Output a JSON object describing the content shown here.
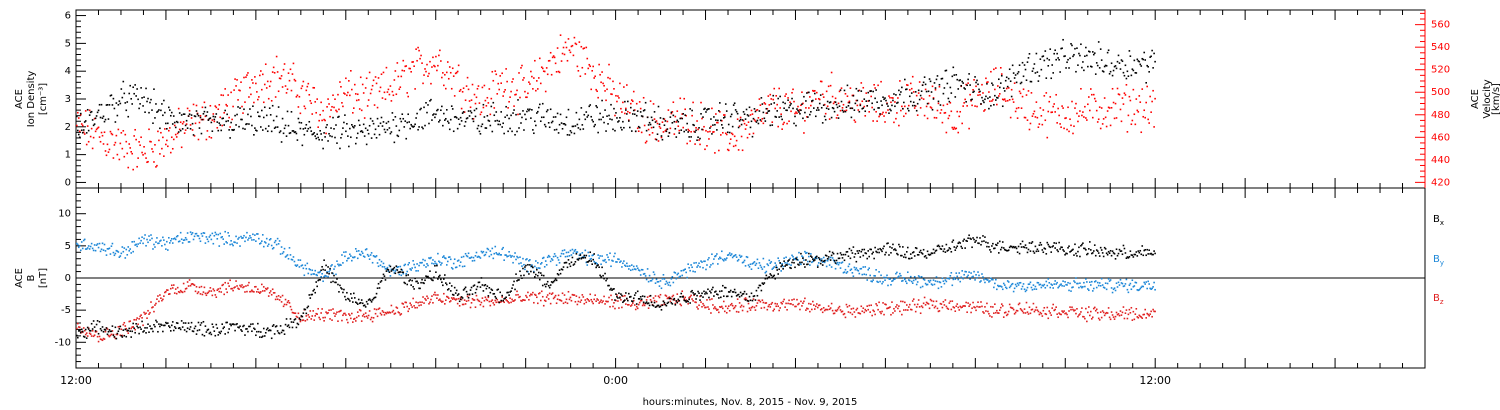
{
  "chart_data": [
    {
      "type": "scatter",
      "panel": "top",
      "ylabel": "ACE\nIon Density\n[cm⁻³]",
      "y2label": "ACE\nVelocity\n[km/s]",
      "ylim": [
        -0.2,
        6.2
      ],
      "y_ticks": [
        "0",
        "1",
        "2",
        "3",
        "4",
        "5",
        "6"
      ],
      "y2lim": [
        415,
        573
      ],
      "y2_ticks": [
        "420",
        "440",
        "460",
        "480",
        "500",
        "520",
        "540",
        "560"
      ],
      "series": [
        {
          "axis": "left",
          "color": "#000000",
          "x": [
            0,
            0.5,
            1,
            1.5,
            2,
            2.5,
            3,
            3.5,
            4,
            4.5,
            5,
            5.5,
            6,
            6.5,
            7,
            7.5,
            8,
            8.5,
            9,
            9.5,
            10,
            10.5,
            11,
            11.5,
            12,
            12.5,
            13,
            13.5,
            14,
            14.5,
            15,
            15.5,
            16,
            16.5,
            17,
            17.5,
            18,
            18.5,
            19,
            19.5,
            20,
            20.5,
            21,
            21.5,
            22,
            22.5,
            23,
            23.5
          ],
          "values": [
            1.8,
            2.5,
            3.0,
            3.0,
            2.3,
            2.2,
            2.1,
            2.2,
            2.2,
            2.1,
            1.8,
            1.8,
            1.8,
            1.8,
            2.1,
            2.3,
            2.5,
            2.3,
            2.2,
            2.4,
            2.4,
            2.3,
            2.2,
            2.4,
            2.3,
            2.4,
            2.1,
            2.0,
            2.2,
            2.4,
            2.3,
            2.6,
            2.6,
            2.8,
            2.8,
            3.0,
            3.0,
            3.2,
            3.3,
            3.6,
            3.3,
            3.2,
            4.1,
            4.3,
            4.5,
            4.5,
            4.3,
            4.3
          ]
        },
        {
          "axis": "right",
          "color": "#ff0000",
          "x": [
            0,
            0.5,
            1,
            1.5,
            2,
            2.5,
            3,
            3.5,
            4,
            4.5,
            5,
            5.5,
            6,
            6.5,
            7,
            7.5,
            8,
            8.5,
            9,
            9.5,
            10,
            10.5,
            11,
            11.5,
            12,
            12.5,
            13,
            13.5,
            14,
            14.5,
            15,
            15.5,
            16,
            16.5,
            17,
            17.5,
            18,
            18.5,
            19,
            19.5,
            20,
            20.5,
            21,
            21.5,
            22,
            22.5,
            23,
            23.5
          ],
          "values": [
            470,
            462,
            452,
            448,
            458,
            472,
            478,
            492,
            512,
            515,
            500,
            482,
            500,
            495,
            505,
            520,
            530,
            510,
            492,
            510,
            500,
            525,
            540,
            520,
            495,
            480,
            470,
            478,
            470,
            460,
            472,
            488,
            482,
            500,
            495,
            490,
            488,
            495,
            492,
            480,
            495,
            505,
            490,
            482,
            482,
            484,
            487,
            488
          ]
        }
      ]
    },
    {
      "type": "scatter",
      "panel": "bottom",
      "ylabel": "ACE\nB\n[nT]",
      "ylim": [
        -14,
        14
      ],
      "y_ticks": [
        "-10",
        "-5",
        "0",
        "5",
        "10"
      ],
      "xlim": [
        0,
        30
      ],
      "x_ticks": [
        "12:00",
        "0:00",
        "12:00"
      ],
      "x_tick_values": [
        0,
        12,
        24
      ],
      "xlabel": "hours:minutes, Nov.  8, 2015 - Nov.  9, 2015",
      "series": [
        {
          "name": "Bx",
          "color": "#000000",
          "x": [
            0,
            0.5,
            1,
            1.5,
            2,
            2.5,
            3,
            3.5,
            4,
            4.5,
            5,
            5.5,
            6,
            6.5,
            7,
            7.5,
            8,
            8.5,
            9,
            9.5,
            10,
            10.5,
            11,
            11.5,
            12,
            12.5,
            13,
            13.5,
            14,
            14.5,
            15,
            15.5,
            16,
            16.5,
            17,
            17.5,
            18,
            18.5,
            19,
            19.5,
            20,
            20.5,
            21,
            21.5,
            22,
            22.5,
            23,
            23.5
          ],
          "values": [
            -8.5,
            -7.5,
            -8.5,
            -7.5,
            -7.5,
            -7.5,
            -8,
            -7.5,
            -8,
            -8,
            -6,
            2,
            -3,
            -4,
            2,
            -1,
            1,
            -3,
            -1,
            -3,
            2,
            -1,
            3,
            3,
            -3,
            -3,
            -4,
            -3,
            -2,
            -2,
            -3,
            1,
            3,
            3,
            3.5,
            4,
            4.5,
            4,
            4,
            5,
            6,
            5,
            5,
            5,
            4.5,
            4.5,
            4,
            4
          ]
        },
        {
          "name": "By",
          "color": "#1e88d8",
          "x": [
            0,
            0.5,
            1,
            1.5,
            2,
            2.5,
            3,
            3.5,
            4,
            4.5,
            5,
            5.5,
            6,
            6.5,
            7,
            7.5,
            8,
            8.5,
            9,
            9.5,
            10,
            10.5,
            11,
            11.5,
            12,
            12.5,
            13,
            13.5,
            14,
            14.5,
            15,
            15.5,
            16,
            16.5,
            17,
            17.5,
            18,
            18.5,
            19,
            19.5,
            20,
            20.5,
            21,
            21.5,
            22,
            22.5,
            23,
            23.5
          ],
          "values": [
            5.5,
            5,
            4,
            6,
            5.5,
            6.5,
            6.5,
            6,
            6.5,
            5,
            2,
            0,
            3.5,
            4,
            1,
            2,
            3,
            2.5,
            4,
            4,
            2,
            3,
            4,
            3,
            3,
            1.5,
            -0.5,
            1,
            2.5,
            4,
            2,
            2,
            3,
            3,
            2,
            1,
            0,
            0,
            -0.5,
            0,
            0.5,
            -1,
            -1,
            -1,
            -1,
            -1,
            -1,
            -1
          ]
        },
        {
          "name": "Bz",
          "color": "#e02020",
          "x": [
            0,
            0.5,
            1,
            1.5,
            2,
            2.5,
            3,
            3.5,
            4,
            4.5,
            5,
            5.5,
            6,
            6.5,
            7,
            7.5,
            8,
            8.5,
            9,
            9.5,
            10,
            10.5,
            11,
            11.5,
            12,
            12.5,
            13,
            13.5,
            14,
            14.5,
            15,
            15.5,
            16,
            16.5,
            17,
            17.5,
            18,
            18.5,
            19,
            19.5,
            20,
            20.5,
            21,
            21.5,
            22,
            22.5,
            23,
            23.5
          ],
          "values": [
            -7,
            -9,
            -8,
            -6,
            -2,
            -1,
            -2,
            -1,
            -1.5,
            -3,
            -6,
            -5.5,
            -6,
            -5.5,
            -5,
            -4,
            -3,
            -3.5,
            -3.5,
            -3.5,
            -3,
            -3,
            -3,
            -3.5,
            -3.5,
            -4,
            -3.5,
            -3,
            -4,
            -4.5,
            -4,
            -4,
            -4,
            -4.5,
            -5,
            -5,
            -4.5,
            -4.5,
            -4,
            -4,
            -4.5,
            -5,
            -4.5,
            -5,
            -5,
            -5.5,
            -5.5,
            -5.5
          ]
        }
      ]
    }
  ],
  "legend": [
    {
      "label": "Bx",
      "color": "#000000"
    },
    {
      "label": "By",
      "color": "#1e88d8"
    },
    {
      "label": "Bz",
      "color": "#e02020"
    }
  ]
}
